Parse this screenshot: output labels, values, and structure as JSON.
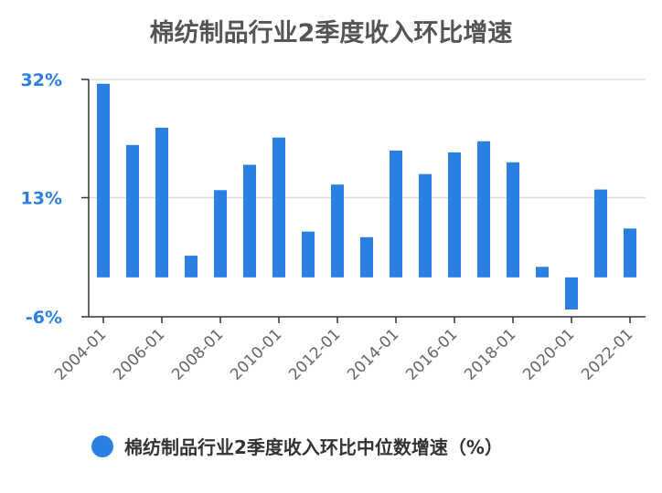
{
  "chart_data": {
    "type": "bar",
    "title": "棉纺制品行业2季度收入环比增速",
    "ylim": [
      -6,
      32
    ],
    "yticks": [
      "32%",
      "13%",
      "-6%"
    ],
    "ytick_values": [
      32,
      13,
      -6
    ],
    "xtick_labels": [
      "2004-01",
      "2006-01",
      "2008-01",
      "2010-01",
      "2012-01",
      "2014-01",
      "2016-01",
      "2018-01",
      "2020-01",
      "2022-01"
    ],
    "categories": [
      "2004",
      "2005",
      "2006",
      "2007",
      "2008",
      "2009",
      "2010",
      "2011",
      "2012",
      "2013",
      "2014",
      "2015",
      "2016",
      "2017",
      "2018",
      "2019",
      "2020",
      "2021",
      "2022"
    ],
    "series": [
      {
        "name": "棉纺制品行业2季度收入环比中位数增速（%）",
        "color": "#2b7fe0",
        "values": [
          31.3,
          21.4,
          24.2,
          3.5,
          14.1,
          18.2,
          22.6,
          7.4,
          15.0,
          6.5,
          20.5,
          16.7,
          20.2,
          22.0,
          18.6,
          1.7,
          -5.2,
          14.2,
          7.9
        ]
      }
    ],
    "grid": true,
    "legend_position": "bottom"
  }
}
